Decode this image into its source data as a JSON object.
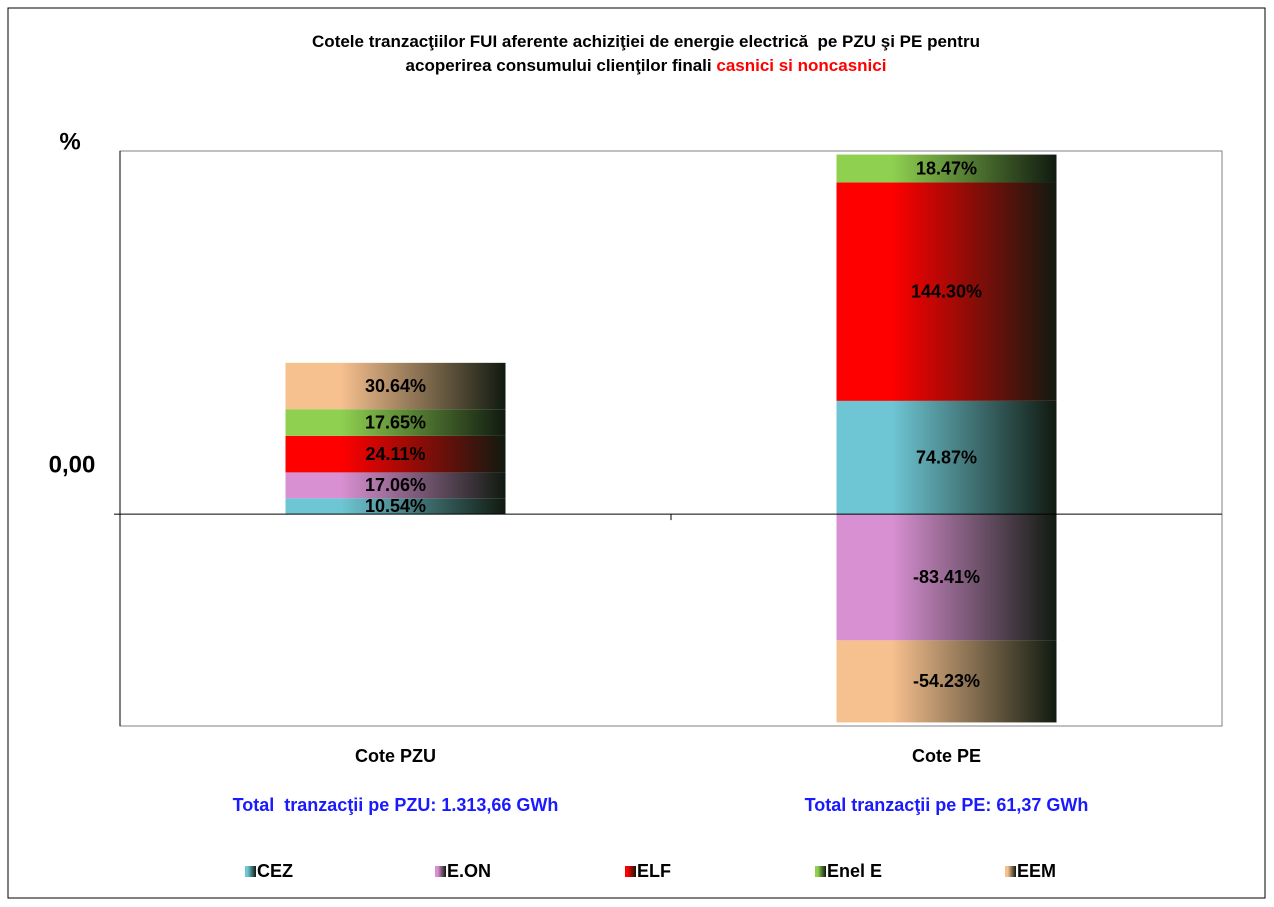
{
  "chart_data": {
    "type": "stacked_bar",
    "title": [
      "Cotele tranzacţiilor FUI aferente achiziţiei de energie electrică  pe PZU şi PE pentru",
      "acoperirea consumului clienţilor finali "
    ],
    "title_highlight": "casnici si noncasnici",
    "y_label": "%",
    "categories": [
      "Cote PZU",
      "Cote PE"
    ],
    "totals": [
      "Total  tranzacţii pe PZU: 1.313,66 GWh",
      "Total tranzacţii pe PE: 61,37 GWh"
    ],
    "series": [
      {
        "name": "CEZ",
        "color": "#6ec6d4",
        "values": [
          10.54,
          74.87
        ],
        "value_labels": [
          "10.54%",
          "74.87%"
        ]
      },
      {
        "name": "E.ON",
        "color": "#d990d2",
        "values": [
          17.06,
          -83.41
        ],
        "value_labels": [
          "17.06%",
          "-83.41%"
        ]
      },
      {
        "name": "ELF",
        "color": "#ff0000",
        "values": [
          24.11,
          144.3
        ],
        "value_labels": [
          "24.11%",
          "144.30%"
        ]
      },
      {
        "name": "Enel E",
        "color": "#8fd050",
        "values": [
          17.65,
          18.47
        ],
        "value_labels": [
          "17.65%",
          "18.47%"
        ]
      },
      {
        "name": "EEM",
        "color": "#f7c08f",
        "values": [
          30.64,
          -54.23
        ],
        "value_labels": [
          "30.64%",
          "-54.23%"
        ]
      }
    ],
    "ylim": [
      -140,
      240
    ],
    "yticks": [
      {
        "value": 0,
        "label": "0,00"
      }
    ],
    "legend": "bottom"
  }
}
